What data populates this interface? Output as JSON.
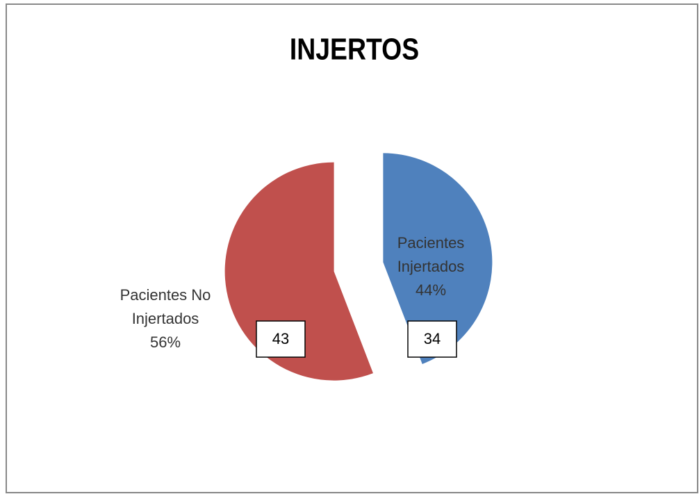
{
  "chart_data": {
    "type": "pie",
    "title": "INJERTOS",
    "categories": [
      "Pacientes Injertados",
      "Pacientes No Injertados"
    ],
    "values": [
      34,
      43
    ],
    "percentages": [
      44,
      56
    ],
    "percentage_labels": [
      "44%",
      "56%"
    ],
    "colors": [
      "#4f81bd",
      "#c0504d"
    ],
    "exploded": true
  }
}
